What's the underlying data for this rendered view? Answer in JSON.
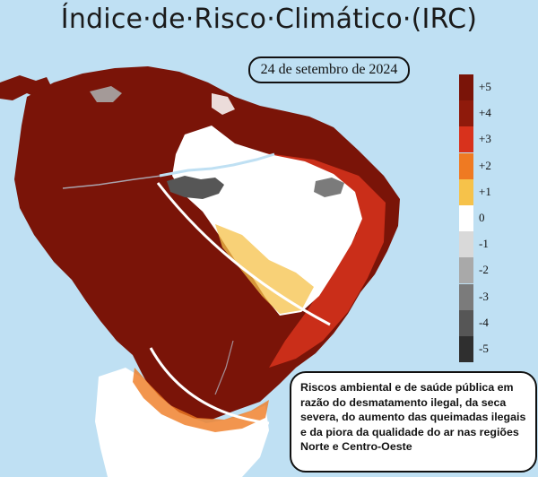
{
  "title": "Índice·de·Risco·Climático·(IRC)",
  "date": "24 de setembro de 2024",
  "legend": {
    "levels": [
      {
        "label": "+5",
        "color": "#7a1408"
      },
      {
        "label": "+4",
        "color": "#8f1a0b"
      },
      {
        "label": "+3",
        "color": "#d8321c"
      },
      {
        "label": "+2",
        "color": "#ef7a22"
      },
      {
        "label": "+1",
        "color": "#f6c24a"
      },
      {
        "label": "0",
        "color": "#ffffff"
      },
      {
        "label": "-1",
        "color": "#d9d9d9"
      },
      {
        "label": "-2",
        "color": "#a9a9a9"
      },
      {
        "label": "-3",
        "color": "#7b7b7b"
      },
      {
        "label": "-4",
        "color": "#565656"
      },
      {
        "label": "-5",
        "color": "#2f2f2f"
      }
    ]
  },
  "note": "Riscos ambiental e de saúde pública em razão do desmatamento ilegal, da seca severa, do aumento das queimadas ilegais e da piora da qualidade do ar nas regiões Norte e Centro-Oeste",
  "colors": {
    "ocean": "#bfe0f3",
    "land_high_risk": "#7a1408",
    "land_low_risk": "#ffffff"
  }
}
